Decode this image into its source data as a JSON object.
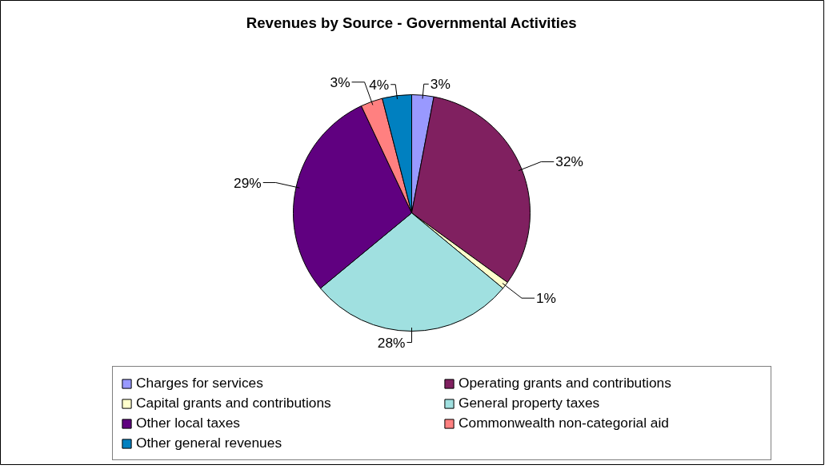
{
  "chart_data": {
    "type": "pie",
    "title": "Revenues by Source - Governmental Activities",
    "categories": [
      "Charges for services",
      "Operating grants and contributions",
      "Capital grants and contributions",
      "General property taxes",
      "Other local taxes",
      "Commonwealth non-categorial aid",
      "Other general revenues"
    ],
    "values": [
      3,
      32,
      1,
      28,
      29,
      3,
      4
    ],
    "colors": [
      "#9999ff",
      "#802060",
      "#ffffcc",
      "#a0e0e0",
      "#600080",
      "#ff8080",
      "#0080c0"
    ],
    "value_labels": [
      "3%",
      "32%",
      "1%",
      "28%",
      "29%",
      "3%",
      "4%"
    ],
    "legend": "bottom"
  }
}
